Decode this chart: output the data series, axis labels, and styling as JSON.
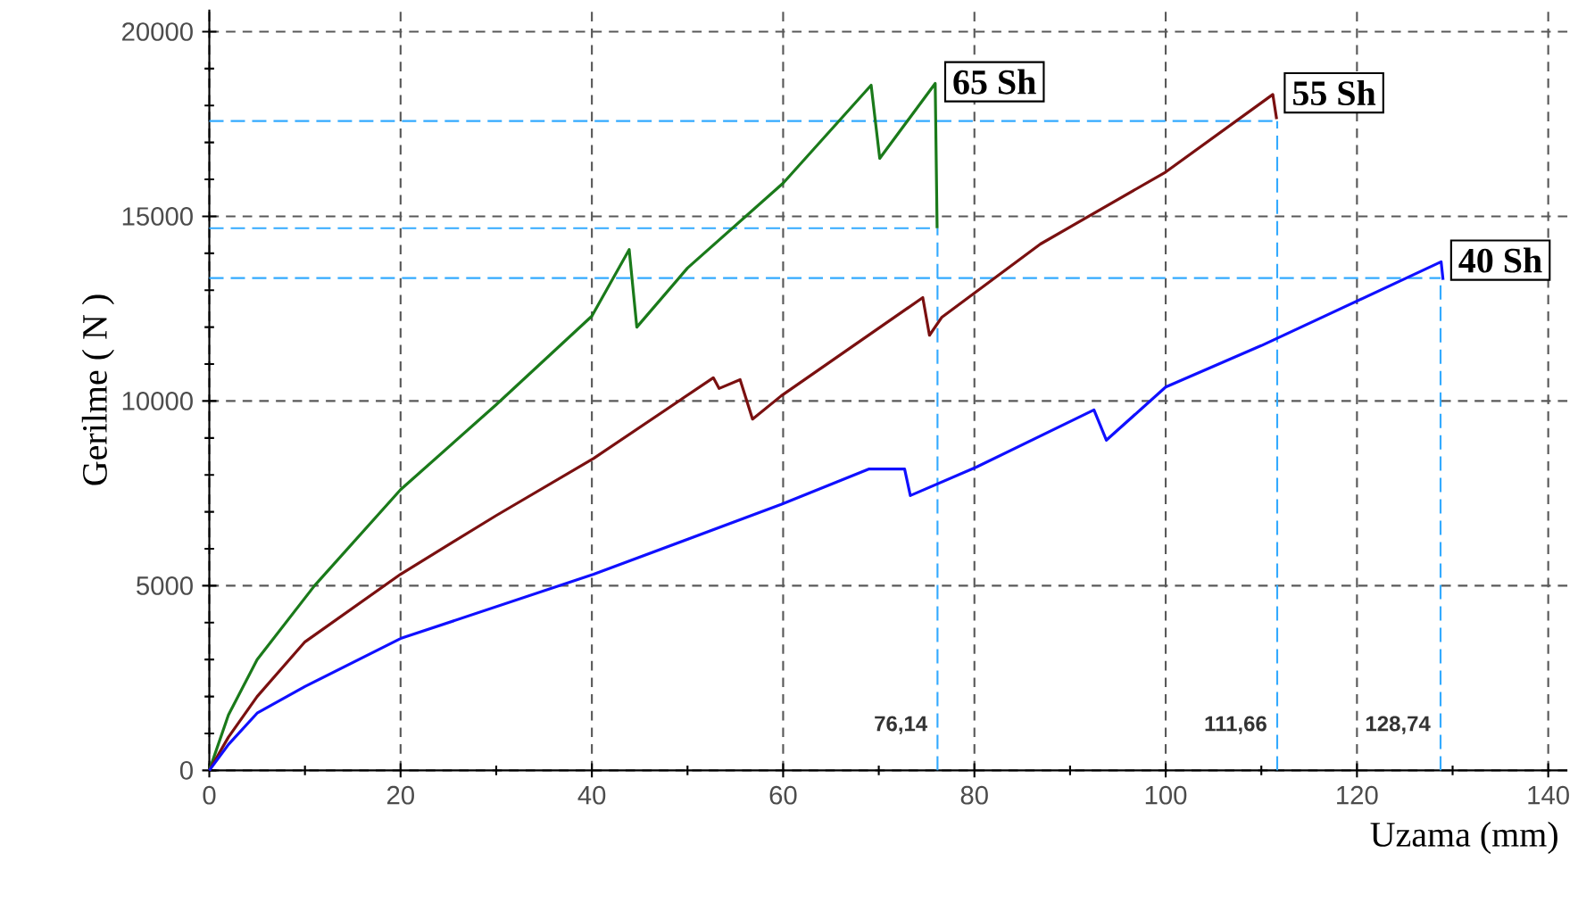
{
  "chart_data": {
    "type": "line",
    "xlabel": "Uzama (mm)",
    "ylabel": "Gerilme ( N )",
    "xlim": [
      0,
      142
    ],
    "ylim": [
      0,
      20600
    ],
    "xticks": [
      0,
      20,
      40,
      60,
      80,
      100,
      120,
      140
    ],
    "yticks": [
      0,
      5000,
      10000,
      15000,
      20000
    ],
    "grid": true,
    "marker": "none",
    "line_style": "solid",
    "series": [
      {
        "name": "65 Sh",
        "color": "#1a7a1a",
        "x": [
          0,
          2,
          5,
          11,
          20,
          30,
          40,
          43.9,
          44.7,
          50,
          60,
          69.2,
          70.1,
          75.9,
          76.1
        ],
        "values": [
          0,
          1500,
          3000,
          5000,
          7600,
          9900,
          12300,
          14100,
          12000,
          13600,
          15900,
          18550,
          16570,
          18600,
          14680
        ]
      },
      {
        "name": "55 Sh",
        "color": "#7a1010",
        "x": [
          0,
          2,
          5,
          10,
          20,
          30,
          40.2,
          52.7,
          53.3,
          55.5,
          56.8,
          59.8,
          74.6,
          75.3,
          76.6,
          86.9,
          100,
          111.2,
          111.6
        ],
        "values": [
          0,
          900,
          2000,
          3480,
          5310,
          6900,
          8450,
          10630,
          10340,
          10580,
          9510,
          10140,
          12800,
          11780,
          12270,
          14250,
          16200,
          18300,
          17630
        ]
      },
      {
        "name": "40 Sh",
        "color": "#1010ff",
        "x": [
          0,
          2,
          5,
          10,
          20,
          40.2,
          59.8,
          69,
          72.7,
          73.3,
          80.2,
          92.5,
          93.8,
          100,
          110,
          128.8,
          129
        ],
        "values": [
          0,
          700,
          1550,
          2270,
          3570,
          5310,
          7200,
          8160,
          8160,
          7440,
          8210,
          9760,
          8940,
          10380,
          11500,
          13770,
          13280
        ]
      }
    ],
    "ref_lines": [
      {
        "axis": "x",
        "value": 76.14,
        "label": "76,14",
        "color": "#33aaff",
        "line_style": "dashed"
      },
      {
        "axis": "x",
        "value": 111.66,
        "label": "111,66",
        "color": "#33aaff",
        "line_style": "dashed"
      },
      {
        "axis": "x",
        "value": 128.74,
        "label": "128,74",
        "color": "#33aaff",
        "line_style": "dashed"
      },
      {
        "axis": "y",
        "value": 14680,
        "label": null,
        "color": "#33aaff",
        "line_style": "dashed"
      },
      {
        "axis": "y",
        "value": 17580,
        "label": null,
        "color": "#33aaff",
        "line_style": "dashed"
      },
      {
        "axis": "y",
        "value": 13330,
        "label": null,
        "color": "#33aaff",
        "line_style": "dashed"
      }
    ]
  }
}
